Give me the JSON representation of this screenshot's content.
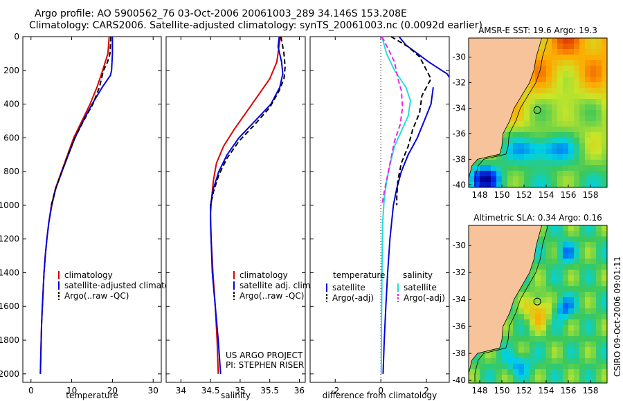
{
  "titles": {
    "line1": "Argo profile: AO 5900562_76 03-Oct-2006 20061003_289 34.146S 153.208E",
    "line2": "Climatology: CARS2006. Satellite-adjusted climatology: synTS_20061003.nc (0.0092d earlier)"
  },
  "side_text": "CSIRO 09-Oct-2006 09:01:11",
  "colors": {
    "climatology": "#dd0000",
    "satellite": "#0000dd",
    "argo": "#000000",
    "satellite_diff": "#22dddd",
    "argo_diff": "#ee22ee",
    "land": "#f7c39b"
  },
  "chart_data": [
    {
      "type": "line",
      "panel": "temperature",
      "xlabel": "temperature",
      "xlim": [
        -2,
        32
      ],
      "xticks": [
        0,
        10,
        20,
        30
      ],
      "ylim": [
        2050,
        0
      ],
      "yticks": [
        0,
        200,
        400,
        600,
        800,
        1000,
        1200,
        1400,
        1600,
        1800,
        2000
      ],
      "legend_position": "bottom-right",
      "series": [
        {
          "name": "climatology",
          "color_key": "climatology",
          "style": "solid",
          "points": [
            [
              19.2,
              0
            ],
            [
              18.9,
              100
            ],
            [
              17.6,
              200
            ],
            [
              16.2,
              300
            ],
            [
              14.5,
              400
            ],
            [
              12.5,
              500
            ],
            [
              10.5,
              600
            ],
            [
              9.0,
              700
            ],
            [
              7.5,
              800
            ],
            [
              6.0,
              900
            ],
            [
              5.0,
              1000
            ],
            [
              4.4,
              1100
            ],
            [
              3.9,
              1200
            ],
            [
              3.5,
              1300
            ],
            [
              3.2,
              1400
            ],
            [
              3.0,
              1500
            ],
            [
              2.8,
              1600
            ],
            [
              2.6,
              1700
            ],
            [
              2.5,
              1800
            ],
            [
              2.4,
              1900
            ],
            [
              2.3,
              2000
            ]
          ]
        },
        {
          "name": "satellite-adjusted climatology",
          "color_key": "satellite",
          "style": "solid",
          "points": [
            [
              20.0,
              0
            ],
            [
              20.0,
              100
            ],
            [
              19.8,
              200
            ],
            [
              19.5,
              230
            ],
            [
              17.5,
              300
            ],
            [
              15.0,
              400
            ],
            [
              12.8,
              500
            ],
            [
              10.8,
              600
            ],
            [
              9.2,
              700
            ],
            [
              7.6,
              800
            ],
            [
              6.1,
              900
            ],
            [
              5.1,
              1000
            ],
            [
              4.4,
              1100
            ],
            [
              3.9,
              1200
            ],
            [
              3.5,
              1300
            ],
            [
              3.2,
              1400
            ],
            [
              3.0,
              1500
            ],
            [
              2.8,
              1600
            ],
            [
              2.6,
              1700
            ],
            [
              2.5,
              1800
            ],
            [
              2.4,
              1900
            ],
            [
              2.3,
              2000
            ]
          ]
        },
        {
          "name": "Argo(..raw -QC)",
          "color_key": "argo",
          "style": "dashed",
          "points": [
            [
              19.6,
              0
            ],
            [
              19.4,
              100
            ],
            [
              18.8,
              150
            ],
            [
              17.8,
              200
            ],
            [
              16.8,
              300
            ],
            [
              15.2,
              400
            ],
            [
              12.9,
              500
            ],
            [
              10.8,
              600
            ],
            [
              9.1,
              700
            ],
            [
              7.6,
              800
            ],
            [
              6.1,
              900
            ],
            [
              5.0,
              1000
            ]
          ]
        }
      ]
    },
    {
      "type": "line",
      "panel": "salinity",
      "xlabel": "salinity",
      "xlim": [
        33.75,
        36.1
      ],
      "xticks": [
        34,
        34.5,
        35,
        35.5,
        36
      ],
      "ylim": [
        2050,
        0
      ],
      "yticks": [
        0,
        200,
        400,
        600,
        800,
        1000,
        1200,
        1400,
        1600,
        1800,
        2000
      ],
      "legend_position": "bottom-right",
      "series": [
        {
          "name": "climatology",
          "color_key": "climatology",
          "style": "solid",
          "points": [
            [
              35.68,
              0
            ],
            [
              35.62,
              150
            ],
            [
              35.5,
              250
            ],
            [
              35.3,
              350
            ],
            [
              35.1,
              450
            ],
            [
              34.9,
              550
            ],
            [
              34.72,
              650
            ],
            [
              34.6,
              750
            ],
            [
              34.55,
              850
            ],
            [
              34.52,
              950
            ],
            [
              34.5,
              1050
            ],
            [
              34.51,
              1200
            ],
            [
              34.54,
              1400
            ],
            [
              34.58,
              1600
            ],
            [
              34.61,
              1800
            ],
            [
              34.63,
              2000
            ]
          ]
        },
        {
          "name": "satellite adj. clim.",
          "color_key": "satellite",
          "style": "solid",
          "points": [
            [
              35.66,
              0
            ],
            [
              35.64,
              60
            ],
            [
              35.7,
              150
            ],
            [
              35.72,
              220
            ],
            [
              35.67,
              300
            ],
            [
              35.52,
              400
            ],
            [
              35.25,
              500
            ],
            [
              34.98,
              600
            ],
            [
              34.78,
              700
            ],
            [
              34.64,
              800
            ],
            [
              34.55,
              900
            ],
            [
              34.5,
              1000
            ],
            [
              34.5,
              1100
            ],
            [
              34.51,
              1200
            ],
            [
              34.53,
              1400
            ],
            [
              34.58,
              1600
            ],
            [
              34.63,
              1800
            ],
            [
              34.67,
              2000
            ]
          ]
        },
        {
          "name": "Argo(..raw -QC)",
          "color_key": "argo",
          "style": "dashed",
          "points": [
            [
              35.69,
              0
            ],
            [
              35.74,
              100
            ],
            [
              35.76,
              180
            ],
            [
              35.74,
              250
            ],
            [
              35.66,
              320
            ],
            [
              35.5,
              420
            ],
            [
              35.25,
              520
            ],
            [
              34.98,
              620
            ],
            [
              34.78,
              720
            ],
            [
              34.64,
              820
            ],
            [
              34.55,
              920
            ],
            [
              34.5,
              1000
            ]
          ]
        }
      ]
    },
    {
      "type": "line",
      "panel": "difference",
      "xlabel": "difference from climatology",
      "xlim": [
        -3.1,
        3.0
      ],
      "xticks": [
        -2,
        0,
        2
      ],
      "ylim": [
        2050,
        0
      ],
      "yticks": [
        0,
        200,
        400,
        600,
        800,
        1000,
        1200,
        1400,
        1600,
        1800,
        2000
      ],
      "legend_position": "bottom",
      "legend_groups": [
        "temperature",
        "salinity"
      ],
      "series": [
        {
          "name": "satellite",
          "group": "temperature",
          "color_key": "satellite",
          "style": "solid",
          "points": [
            [
              0.8,
              0
            ],
            [
              1.1,
              50
            ],
            [
              2.1,
              150
            ],
            [
              2.9,
              220
            ],
            [
              3.0,
              240
            ]
          ]
        },
        {
          "name": "satellite",
          "group": "temperature",
          "color_key": "satellite",
          "style": "solid",
          "points": [
            [
              2.3,
              300
            ],
            [
              2.2,
              400
            ],
            [
              1.9,
              500
            ],
            [
              1.6,
              600
            ],
            [
              1.2,
              700
            ],
            [
              0.9,
              800
            ],
            [
              0.7,
              900
            ],
            [
              0.55,
              1000
            ],
            [
              0.4,
              1200
            ],
            [
              0.3,
              1400
            ],
            [
              0.22,
              1600
            ],
            [
              0.15,
              1800
            ],
            [
              0.1,
              2000
            ]
          ]
        },
        {
          "name": "Argo(-adj)",
          "group": "temperature",
          "color_key": "argo",
          "style": "dashed",
          "points": [
            [
              0.45,
              0
            ],
            [
              1.2,
              60
            ],
            [
              1.7,
              120
            ],
            [
              2.2,
              250
            ],
            [
              1.8,
              350
            ],
            [
              1.7,
              450
            ],
            [
              1.4,
              550
            ],
            [
              1.2,
              650
            ],
            [
              0.9,
              750
            ],
            [
              0.75,
              850
            ],
            [
              0.7,
              950
            ],
            [
              0.7,
              1000
            ]
          ]
        },
        {
          "name": "satellite",
          "group": "salinity",
          "color_key": "satellite_diff",
          "style": "solid",
          "points": [
            [
              0.05,
              0
            ],
            [
              0.25,
              100
            ],
            [
              0.6,
              200
            ],
            [
              1.1,
              300
            ],
            [
              1.3,
              380
            ],
            [
              1.2,
              470
            ],
            [
              0.9,
              560
            ],
            [
              0.6,
              650
            ],
            [
              0.4,
              760
            ],
            [
              0.25,
              860
            ],
            [
              0.15,
              960
            ],
            [
              0.08,
              1100
            ],
            [
              0.05,
              1400
            ],
            [
              0.03,
              1700
            ],
            [
              0.02,
              2000
            ]
          ]
        },
        {
          "name": "Argo(-adj)",
          "group": "salinity",
          "color_key": "argo_diff",
          "style": "dashed",
          "points": [
            [
              0.05,
              0
            ],
            [
              0.35,
              80
            ],
            [
              0.6,
              150
            ],
            [
              0.75,
              250
            ],
            [
              0.9,
              320
            ],
            [
              0.95,
              420
            ],
            [
              0.85,
              520
            ],
            [
              0.6,
              620
            ],
            [
              0.45,
              720
            ],
            [
              0.3,
              820
            ],
            [
              0.15,
              920
            ],
            [
              0.05,
              1000
            ]
          ]
        }
      ]
    }
  ],
  "panels": {
    "temperature": {
      "legend": [
        {
          "label": "climatology",
          "color_key": "climatology"
        },
        {
          "label": "satellite-adjusted climatology",
          "color_key": "satellite"
        },
        {
          "label": "Argo(..raw -QC)",
          "color_key": "argo"
        }
      ]
    },
    "salinity": {
      "legend": [
        {
          "label": "climatology",
          "color_key": "climatology"
        },
        {
          "label": "satellite adj. clim.",
          "color_key": "satellite"
        },
        {
          "label": "Argo(..raw -QC)",
          "color_key": "argo"
        }
      ],
      "credit1": "US ARGO PROJECT",
      "credit2": "PI: STEPHEN RISER"
    },
    "difference": {
      "legend_headers": [
        "temperature",
        "salinity"
      ],
      "legend_left": [
        {
          "label": "satellite",
          "color_key": "satellite"
        },
        {
          "label": "Argo(-adj)",
          "color_key": "argo"
        }
      ],
      "legend_right": [
        {
          "label": "satellite",
          "color_key": "satellite_diff"
        },
        {
          "label": "Argo(-adj)",
          "color_key": "argo_diff"
        }
      ]
    }
  },
  "maps": [
    {
      "name": "sst",
      "title": "AMSR-E SST: 19.6 Argo: 19.3",
      "xticks": [
        148,
        150,
        152,
        154,
        156,
        158
      ],
      "yticks": [
        -30,
        -32,
        -34,
        -36,
        -38,
        -40
      ],
      "xlim": [
        147,
        159.5
      ],
      "ylim": [
        -40.2,
        -28.5
      ],
      "argo_point": [
        153.2,
        -34.15
      ],
      "colorscale": "sst"
    },
    {
      "name": "sla",
      "title": "Altimetric SLA: 0.34 Argo: 0.16",
      "xticks": [
        148,
        150,
        152,
        154,
        156,
        158
      ],
      "yticks": [
        -30,
        -32,
        -34,
        -36,
        -38,
        -40
      ],
      "xlim": [
        147,
        159.5
      ],
      "ylim": [
        -40.2,
        -28.5
      ],
      "argo_point": [
        153.2,
        -34.15
      ],
      "colorscale": "sla"
    }
  ]
}
